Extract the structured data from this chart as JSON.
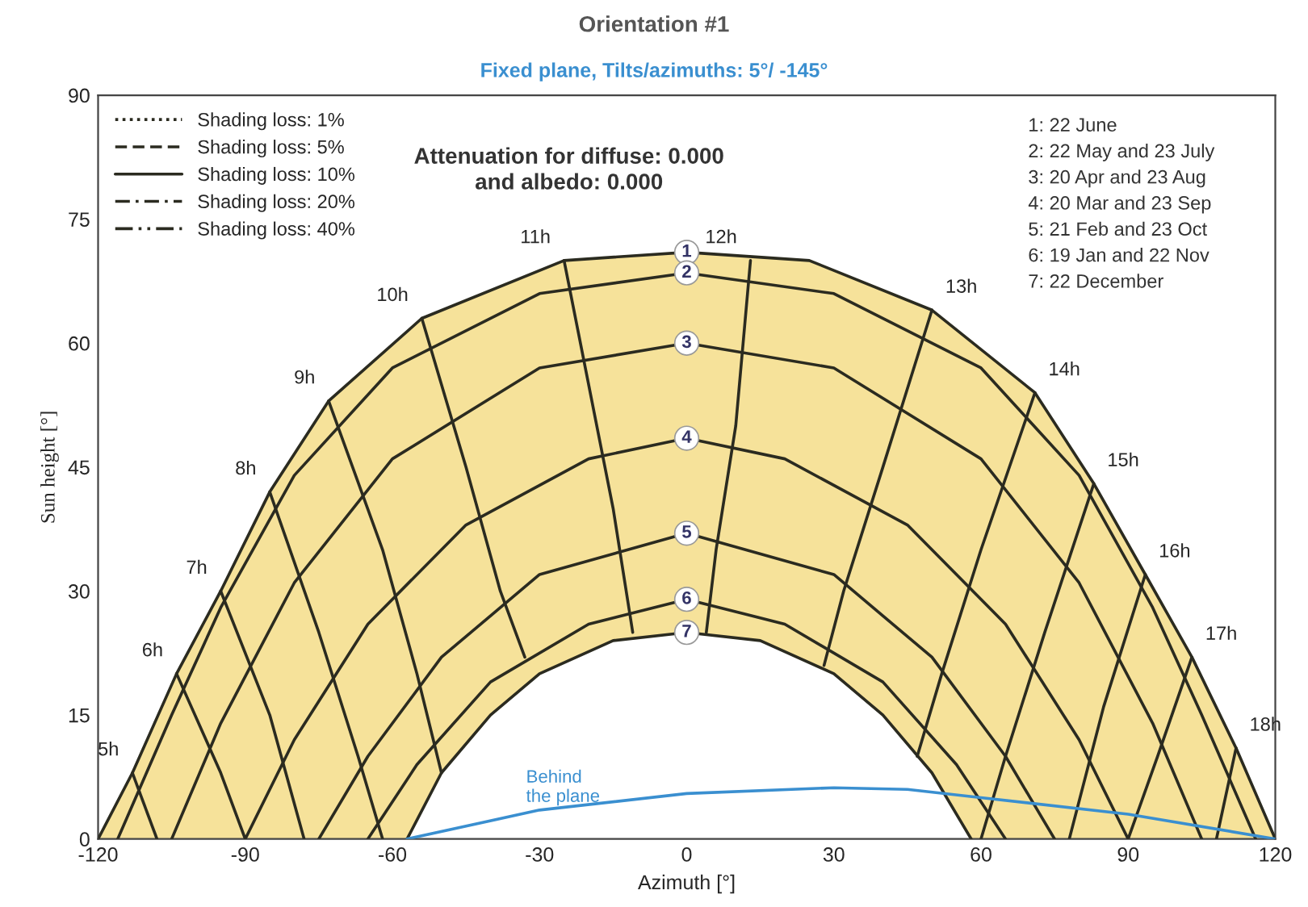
{
  "chart_data": {
    "type": "line",
    "title": "Orientation #1",
    "subtitle": "Fixed plane, Tilts/azimuths: 5°/ -145°",
    "xlabel": "Azimuth [°]",
    "ylabel": "Sun height [°]",
    "xlim": [
      -120,
      120
    ],
    "xticks": [
      -120,
      -90,
      -60,
      -30,
      0,
      30,
      60,
      90,
      120
    ],
    "ylim": [
      0,
      90
    ],
    "yticks": [
      0,
      15,
      30,
      45,
      60,
      75,
      90
    ],
    "grid": false,
    "legend": "top left",
    "series": [
      {
        "name": "1",
        "type": "area",
        "color": "#f6e29a",
        "x": [
          -120,
          -113,
          -104,
          -95,
          -85,
          -73,
          -54,
          -25,
          0,
          25,
          50,
          71,
          83,
          93.5,
          103,
          112,
          120
        ],
        "values": [
          0,
          8,
          20,
          30,
          42,
          53,
          63,
          70,
          71,
          70,
          64,
          54,
          43,
          32,
          22,
          11,
          0
        ]
      },
      {
        "name": "2",
        "color": "#2b2b20",
        "x": [
          -116,
          -105,
          -95,
          -80,
          -60,
          -30,
          0,
          30,
          60,
          80,
          95,
          105,
          116
        ],
        "values": [
          0,
          15,
          28,
          44,
          57,
          66,
          68.5,
          66,
          57,
          44,
          28,
          15,
          0
        ]
      },
      {
        "name": "3",
        "color": "#2b2b20",
        "x": [
          -105,
          -95,
          -80,
          -60,
          -30,
          0,
          30,
          60,
          80,
          95,
          105
        ],
        "values": [
          0,
          14,
          31,
          46,
          57,
          60,
          57,
          46,
          31,
          14,
          0
        ]
      },
      {
        "name": "4",
        "color": "#2b2b20",
        "x": [
          -90,
          -80,
          -65,
          -45,
          -20,
          0,
          20,
          45,
          65,
          80,
          90
        ],
        "values": [
          0,
          12,
          26,
          38,
          46,
          48.5,
          46,
          38,
          26,
          12,
          0
        ]
      },
      {
        "name": "5",
        "color": "#2b2b20",
        "x": [
          -75,
          -65,
          -50,
          -30,
          0,
          30,
          50,
          65,
          75
        ],
        "values": [
          0,
          10,
          22,
          32,
          37,
          32,
          22,
          10,
          0
        ]
      },
      {
        "name": "6",
        "color": "#2b2b20",
        "x": [
          -65,
          -55,
          -40,
          -20,
          0,
          20,
          40,
          55,
          65
        ],
        "values": [
          0,
          9,
          19,
          26,
          29,
          26,
          19,
          9,
          0
        ]
      },
      {
        "name": "7",
        "type": "area",
        "color": "#ffffff",
        "x": [
          -57,
          -50,
          -40,
          -30,
          -15,
          0,
          15,
          30,
          40,
          50,
          58
        ],
        "values": [
          0,
          8,
          15,
          20,
          24,
          25,
          24,
          20,
          15,
          8,
          0
        ]
      },
      {
        "color": "#2b2b20",
        "x": [
          -113,
          -108
        ],
        "values": [
          8,
          0
        ]
      },
      {
        "color": "#2b2b20",
        "x": [
          -104,
          -95,
          -90
        ],
        "values": [
          20,
          8,
          0
        ]
      },
      {
        "color": "#2b2b20",
        "x": [
          -95,
          -85,
          -78
        ],
        "values": [
          30,
          15,
          0
        ]
      },
      {
        "color": "#2b2b20",
        "x": [
          -85,
          -75,
          -67,
          -62
        ],
        "values": [
          42,
          25,
          10,
          0
        ]
      },
      {
        "color": "#2b2b20",
        "x": [
          -73,
          -62,
          -55,
          -50
        ],
        "values": [
          53,
          35,
          20,
          8
        ]
      },
      {
        "color": "#2b2b20",
        "x": [
          -54,
          -45,
          -38,
          -33
        ],
        "values": [
          63,
          45,
          30,
          22
        ]
      },
      {
        "color": "#2b2b20",
        "x": [
          -25,
          -20,
          -15,
          -11
        ],
        "values": [
          70,
          55,
          40,
          25
        ]
      },
      {
        "color": "#2b2b20",
        "x": [
          13,
          10,
          6,
          4
        ],
        "values": [
          70,
          50,
          35,
          25
        ]
      },
      {
        "color": "#2b2b20",
        "x": [
          50,
          40,
          32,
          28
        ],
        "values": [
          64,
          45,
          30,
          21
        ]
      },
      {
        "color": "#2b2b20",
        "x": [
          71,
          60,
          52,
          47
        ],
        "values": [
          54,
          35,
          20,
          10
        ]
      },
      {
        "color": "#2b2b20",
        "x": [
          83,
          73,
          65,
          60
        ],
        "values": [
          43,
          25,
          10,
          0
        ]
      },
      {
        "color": "#2b2b20",
        "x": [
          93.5,
          85,
          78
        ],
        "values": [
          32,
          16,
          0
        ]
      },
      {
        "color": "#2b2b20",
        "x": [
          103,
          96,
          90
        ],
        "values": [
          22,
          10,
          0
        ]
      },
      {
        "color": "#2b2b20",
        "x": [
          112,
          108
        ],
        "values": [
          11,
          0
        ]
      },
      {
        "color": "#3a8fd0",
        "x": [
          -57,
          -30,
          0,
          30,
          45,
          60,
          90,
          120
        ],
        "values": [
          0,
          3.5,
          5.5,
          6.2,
          6,
          5,
          3,
          0
        ]
      },
      {
        "name": "Shading loss: 1%",
        "color": "#2b2b20",
        "line_style": "dotted"
      },
      {
        "name": "Shading loss: 5%",
        "color": "#2b2b20",
        "line_style": "dashed"
      },
      {
        "name": "Shading loss: 10%",
        "color": "#2b2b20",
        "line_style": "solid"
      },
      {
        "name": "Shading loss: 20%",
        "color": "#2b2b20",
        "line_style": "dashdot"
      },
      {
        "name": "Shading loss: 40%",
        "color": "#2b2b20",
        "line_style": "dashdotdot"
      }
    ],
    "annotations": [
      {
        "text": "5h",
        "x": -113,
        "y": 8
      },
      {
        "text": "6h",
        "x": -104,
        "y": 20
      },
      {
        "text": "7h",
        "x": -95,
        "y": 30
      },
      {
        "text": "8h",
        "x": -85,
        "y": 42
      },
      {
        "text": "9h",
        "x": -73,
        "y": 53
      },
      {
        "text": "10h",
        "x": -54,
        "y": 63
      },
      {
        "text": "11h",
        "x": -25,
        "y": 70
      },
      {
        "text": "12h",
        "x": 13,
        "y": 70
      },
      {
        "text": "13h",
        "x": 50,
        "y": 64
      },
      {
        "text": "14h",
        "x": 71,
        "y": 54
      },
      {
        "text": "15h",
        "x": 83,
        "y": 43
      },
      {
        "text": "16h",
        "x": 93.5,
        "y": 32
      },
      {
        "text": "17h",
        "x": 103,
        "y": 22
      },
      {
        "text": "18h",
        "x": 112,
        "y": 11
      },
      {
        "text": "Behind\nthe plane",
        "x": -30,
        "y": 3.5
      },
      "Attenuation for diffuse: 0.000\nand albedo: 0.000",
      "1: 22 June\n2: 22 May and 23 July\n3: 20 Apr and 23 Aug\n4: 20 Mar and 23 Sep\n5: 21 Feb and 23 Oct\n6: 19 Jan and 22 Nov\n7: 22 December"
    ]
  }
}
